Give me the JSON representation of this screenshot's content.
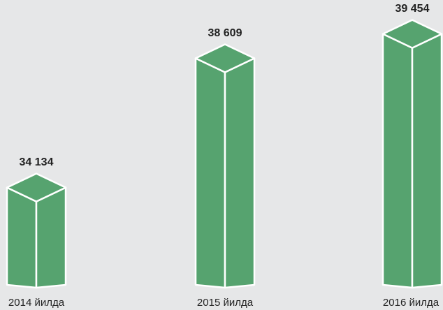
{
  "chart_data": {
    "type": "bar3d",
    "categories": [
      "2014 йилда",
      "2015 йилда",
      "2016 йилда"
    ],
    "values": [
      34134,
      38609,
      39454
    ],
    "value_labels": [
      "34 134",
      "38 609",
      "39 454"
    ],
    "color": "#56a36f",
    "ylim": [
      31200,
      40000
    ]
  }
}
